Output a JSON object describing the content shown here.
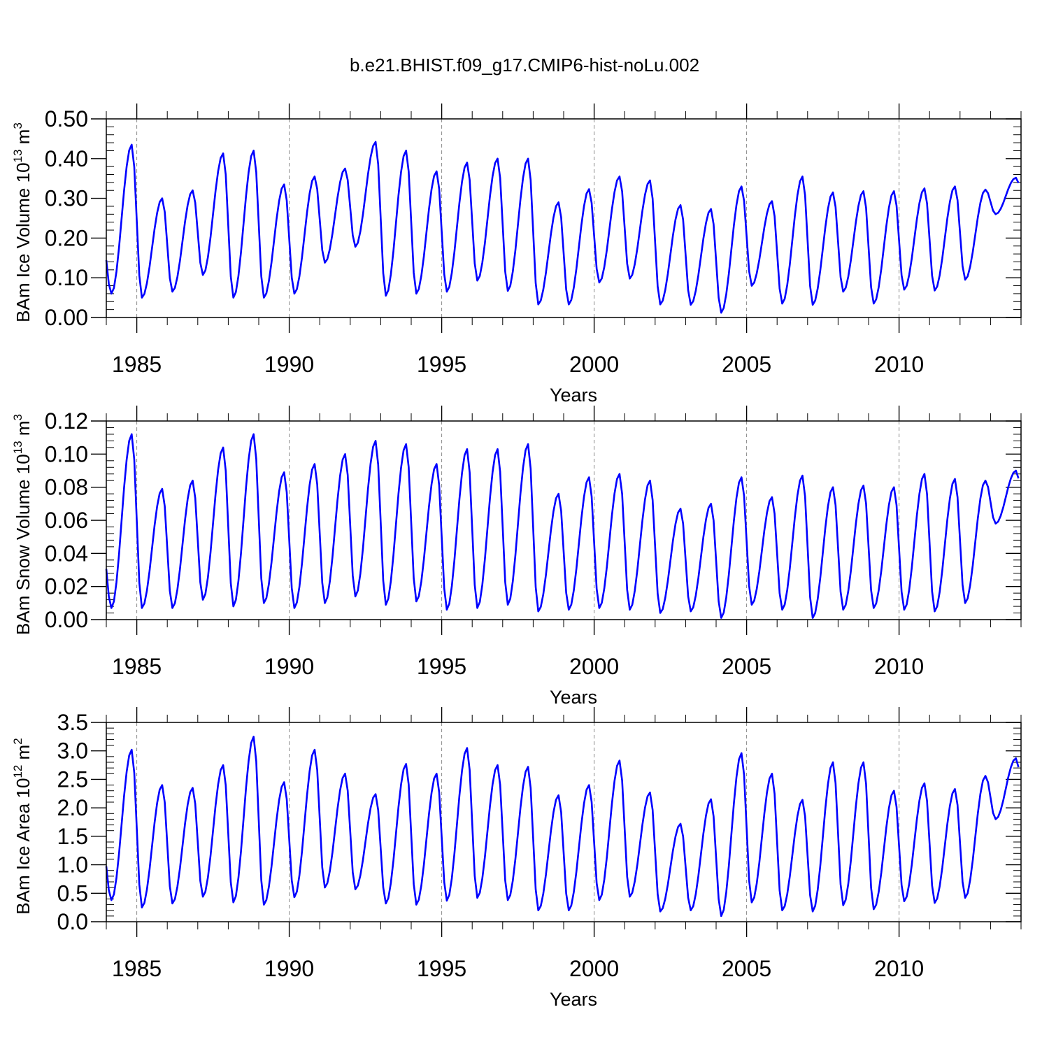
{
  "title": "b.e21.BHIST.f09_g17.CMIP6-hist-noLu.002",
  "line_color": "#0000ff",
  "chart_data": [
    {
      "type": "line",
      "ylabel": "BAm Ice Volume 10",
      "ylabel_exp": "13",
      "ylabel_unit": "m",
      "ylabel_unit_exp": "3",
      "xlabel": "Years",
      "xlim": [
        1984,
        2014
      ],
      "ylim": [
        0.0,
        0.5
      ],
      "yticks": [
        "0.00",
        "0.10",
        "0.20",
        "0.30",
        "0.40",
        "0.50"
      ],
      "ytick_values": [
        0.0,
        0.1,
        0.2,
        0.3,
        0.4,
        0.5
      ],
      "xticks": [
        "1985",
        "1990",
        "1995",
        "2000",
        "2005",
        "2010"
      ],
      "xtick_values": [
        1985,
        1990,
        1995,
        2000,
        2005,
        2010
      ],
      "grid": "dashed vertical at labeled years",
      "annual_min": [
        0.06,
        0.05,
        0.065,
        0.107,
        0.05,
        0.05,
        0.06,
        0.138,
        0.178,
        0.055,
        0.06,
        0.065,
        0.093,
        0.067,
        0.033,
        0.033,
        0.088,
        0.098,
        0.033,
        0.032,
        0.012,
        0.08,
        0.035,
        0.032,
        0.065,
        0.035,
        0.07,
        0.068,
        0.095,
        0.26
      ],
      "annual_max": [
        0.435,
        0.3,
        0.32,
        0.413,
        0.42,
        0.335,
        0.355,
        0.375,
        0.442,
        0.42,
        0.368,
        0.39,
        0.4,
        0.4,
        0.29,
        0.323,
        0.355,
        0.345,
        0.283,
        0.273,
        0.33,
        0.293,
        0.355,
        0.315,
        0.318,
        0.318,
        0.325,
        0.33,
        0.322,
        0.352
      ]
    },
    {
      "type": "line",
      "ylabel": "BAm Snow Volume 10",
      "ylabel_exp": "13",
      "ylabel_unit": "m",
      "ylabel_unit_exp": "3",
      "xlabel": "Years",
      "xlim": [
        1984,
        2014
      ],
      "ylim": [
        0.0,
        0.12
      ],
      "yticks": [
        "0.00",
        "0.02",
        "0.04",
        "0.06",
        "0.08",
        "0.10",
        "0.12"
      ],
      "ytick_values": [
        0.0,
        0.02,
        0.04,
        0.06,
        0.08,
        0.1,
        0.12
      ],
      "xticks": [
        "1985",
        "1990",
        "1995",
        "2000",
        "2005",
        "2010"
      ],
      "xtick_values": [
        1985,
        1990,
        1995,
        2000,
        2005,
        2010
      ],
      "grid": "dashed vertical at labeled years",
      "annual_min": [
        0.007,
        0.007,
        0.007,
        0.012,
        0.008,
        0.01,
        0.007,
        0.01,
        0.014,
        0.009,
        0.011,
        0.006,
        0.007,
        0.009,
        0.005,
        0.006,
        0.007,
        0.006,
        0.004,
        0.005,
        0.001,
        0.009,
        0.006,
        0.001,
        0.006,
        0.007,
        0.006,
        0.005,
        0.01,
        0.058
      ],
      "annual_max": [
        0.112,
        0.079,
        0.084,
        0.104,
        0.112,
        0.089,
        0.094,
        0.1,
        0.108,
        0.106,
        0.094,
        0.103,
        0.103,
        0.106,
        0.076,
        0.086,
        0.088,
        0.084,
        0.067,
        0.07,
        0.086,
        0.074,
        0.087,
        0.08,
        0.081,
        0.08,
        0.088,
        0.085,
        0.084,
        0.09
      ]
    },
    {
      "type": "line",
      "ylabel": "BAm Ice Area 10",
      "ylabel_exp": "12",
      "ylabel_unit": "m",
      "ylabel_unit_exp": "2",
      "xlabel": "Years",
      "xlim": [
        1984,
        2014
      ],
      "ylim": [
        0.0,
        3.5
      ],
      "yticks": [
        "0.0",
        "0.5",
        "1.0",
        "1.5",
        "2.0",
        "2.5",
        "3.0",
        "3.5"
      ],
      "ytick_values": [
        0.0,
        0.5,
        1.0,
        1.5,
        2.0,
        2.5,
        3.0,
        3.5
      ],
      "xticks": [
        "1985",
        "1990",
        "1995",
        "2000",
        "2005",
        "2010"
      ],
      "xtick_values": [
        1985,
        1990,
        1995,
        2000,
        2005,
        2010
      ],
      "grid": "dashed vertical at labeled years",
      "annual_min": [
        0.38,
        0.25,
        0.32,
        0.44,
        0.34,
        0.3,
        0.43,
        0.6,
        0.57,
        0.32,
        0.3,
        0.37,
        0.42,
        0.38,
        0.2,
        0.2,
        0.38,
        0.44,
        0.18,
        0.2,
        0.1,
        0.34,
        0.2,
        0.18,
        0.29,
        0.22,
        0.36,
        0.33,
        0.42,
        1.8
      ],
      "annual_max": [
        3.02,
        2.4,
        2.35,
        2.75,
        3.25,
        2.45,
        3.02,
        2.6,
        2.24,
        2.77,
        2.6,
        3.05,
        2.75,
        2.72,
        2.22,
        2.4,
        2.83,
        2.27,
        1.72,
        2.15,
        2.96,
        2.6,
        2.14,
        2.8,
        2.8,
        2.3,
        2.43,
        2.33,
        2.56,
        2.87
      ]
    }
  ]
}
